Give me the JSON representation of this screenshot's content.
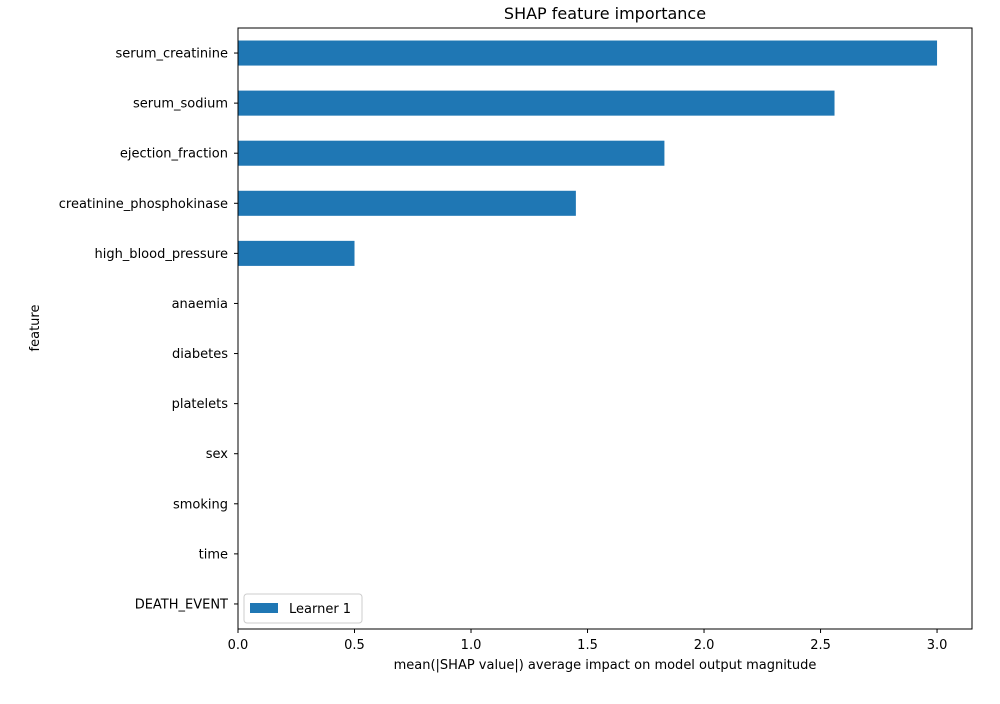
{
  "chart_data": {
    "type": "bar",
    "orientation": "horizontal",
    "title": "SHAP feature importance",
    "xlabel": "mean(|SHAP value|) average impact on model output magnitude",
    "ylabel": "feature",
    "xlim": [
      0,
      3.15
    ],
    "xticks": [
      0.0,
      0.5,
      1.0,
      1.5,
      2.0,
      2.5,
      3.0
    ],
    "xtick_labels": [
      "0.0",
      "0.5",
      "1.0",
      "1.5",
      "2.0",
      "2.5",
      "3.0"
    ],
    "grid": false,
    "legend_position": "lower-left",
    "categories": [
      "serum_creatinine",
      "serum_sodium",
      "ejection_fraction",
      "creatinine_phosphokinase",
      "high_blood_pressure",
      "anaemia",
      "diabetes",
      "platelets",
      "sex",
      "smoking",
      "time",
      "DEATH_EVENT"
    ],
    "series": [
      {
        "name": "Learner 1",
        "color": "#1f77b4",
        "values": [
          3.0,
          2.56,
          1.83,
          1.45,
          0.5,
          0,
          0,
          0,
          0,
          0,
          0,
          0
        ]
      }
    ]
  }
}
